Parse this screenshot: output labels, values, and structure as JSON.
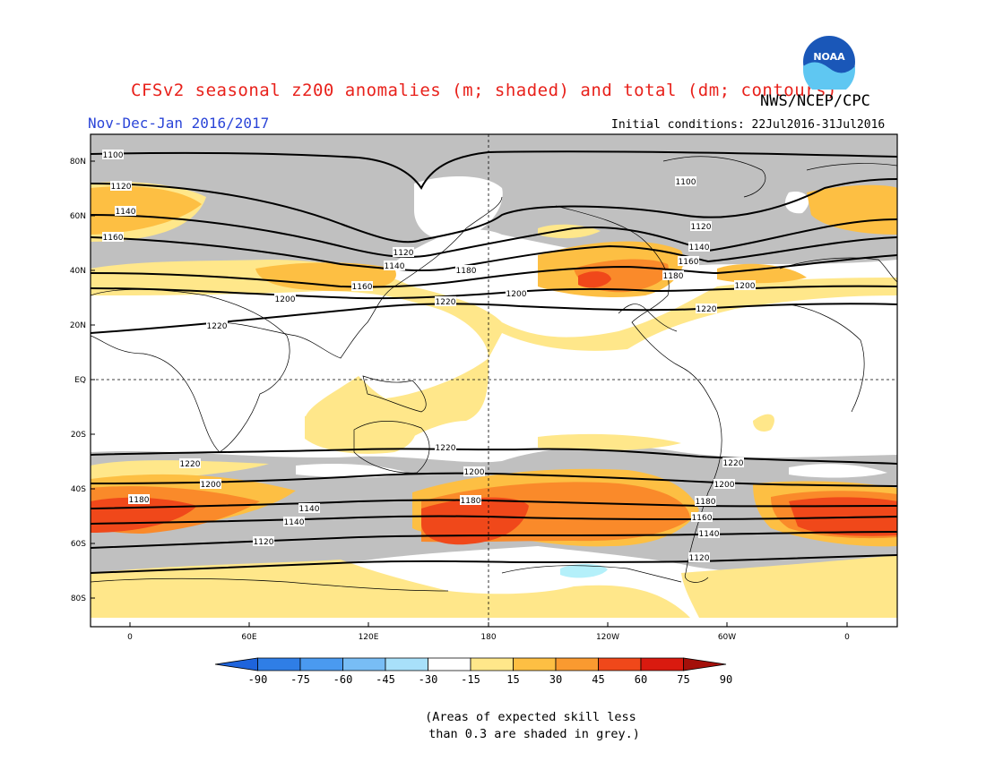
{
  "header": {
    "title": "CFSv2 seasonal z200 anomalies (m; shaded) and total (dm; contours)",
    "subtitle": "Nov-Dec-Jan 2016/2017",
    "initial_conditions": "Initial conditions: 22Jul2016-31Jul2016",
    "agency": "NWS/NCEP/CPC",
    "logo_text": "NOAA"
  },
  "map": {
    "lat_labels": [
      "80N",
      "60N",
      "40N",
      "20N",
      "EQ",
      "20S",
      "40S",
      "60S",
      "80S"
    ],
    "lon_labels": [
      "0",
      "60E",
      "120E",
      "180",
      "120W",
      "60W",
      "0"
    ],
    "contour_labels_north": [
      "1100",
      "1120",
      "1140",
      "1160",
      "1180",
      "1200",
      "1220"
    ],
    "contour_labels_south": [
      "1220",
      "1200",
      "1180",
      "1160",
      "1140",
      "1120"
    ],
    "colors": {
      "grey_skill": "#c0c0c0",
      "anom_15_30": "#ffe78a",
      "anom_30_45": "#fdbf43",
      "anom_45_60": "#fa8a2a",
      "anom_60_75": "#f0481a",
      "neg_15_30": "#b4f0fa"
    }
  },
  "colorbar": {
    "labels": [
      "-90",
      "-75",
      "-60",
      "-45",
      "-30",
      "-15",
      "15",
      "30",
      "45",
      "60",
      "75",
      "90"
    ],
    "colors": [
      "#1e64dc",
      "#2f7ee6",
      "#4a9af0",
      "#78bdf5",
      "#a8e0fa",
      "#ffffff",
      "#ffe78a",
      "#fdbf43",
      "#fa9a30",
      "#f0481a",
      "#d91a0f",
      "#a4100a"
    ]
  },
  "footnote": "(Areas of expected skill less\n than 0.3 are shaded in grey.)"
}
